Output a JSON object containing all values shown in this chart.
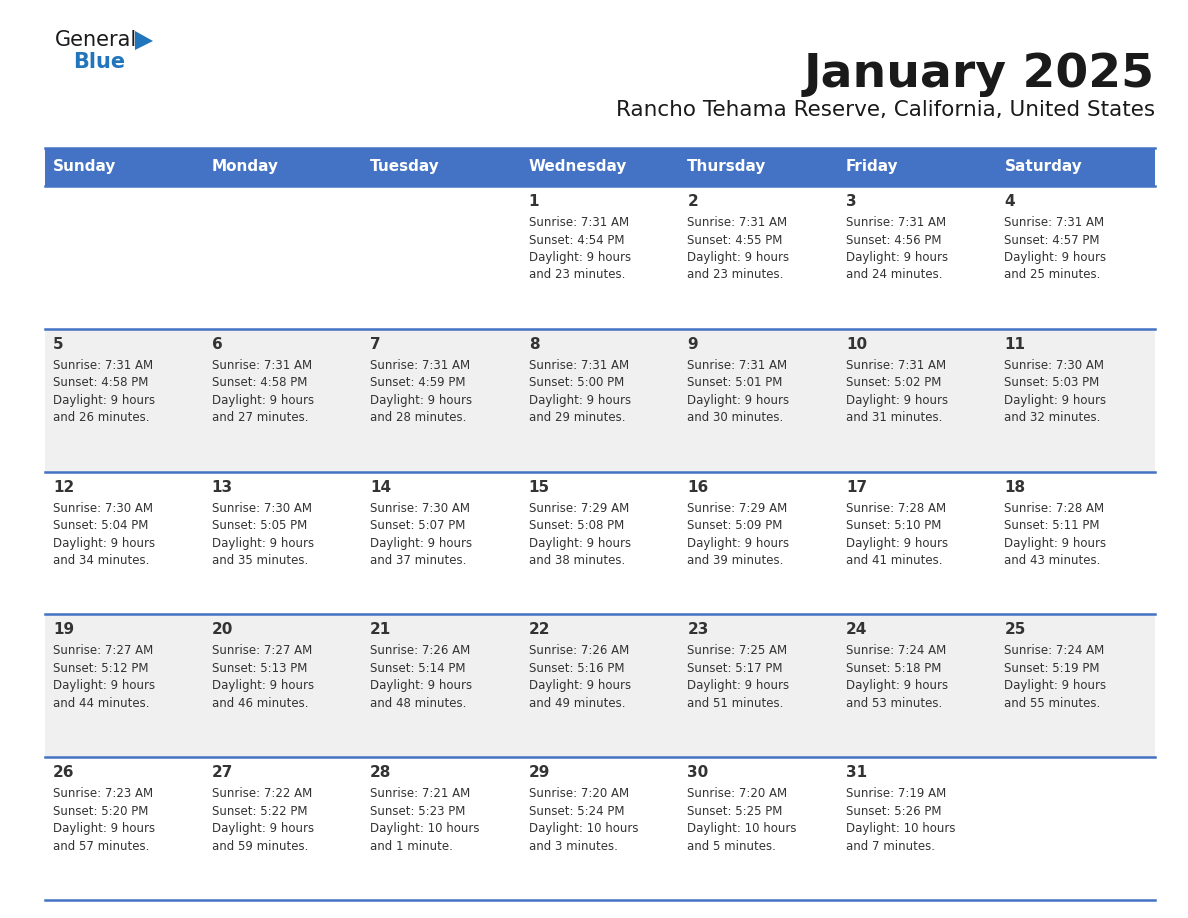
{
  "title": "January 2025",
  "subtitle": "Rancho Tehama Reserve, California, United States",
  "header_bg": "#4472C4",
  "header_text": "#FFFFFF",
  "row_bg_odd": "#FFFFFF",
  "row_bg_even": "#F0F0F0",
  "cell_text": "#333333",
  "border_color": "#4472C4",
  "days_of_week": [
    "Sunday",
    "Monday",
    "Tuesday",
    "Wednesday",
    "Thursday",
    "Friday",
    "Saturday"
  ],
  "weeks": [
    [
      {
        "day": "",
        "sunrise": "",
        "sunset": "",
        "daylight": ""
      },
      {
        "day": "",
        "sunrise": "",
        "sunset": "",
        "daylight": ""
      },
      {
        "day": "",
        "sunrise": "",
        "sunset": "",
        "daylight": ""
      },
      {
        "day": "1",
        "sunrise": "Sunrise: 7:31 AM",
        "sunset": "Sunset: 4:54 PM",
        "daylight": "Daylight: 9 hours\nand 23 minutes."
      },
      {
        "day": "2",
        "sunrise": "Sunrise: 7:31 AM",
        "sunset": "Sunset: 4:55 PM",
        "daylight": "Daylight: 9 hours\nand 23 minutes."
      },
      {
        "day": "3",
        "sunrise": "Sunrise: 7:31 AM",
        "sunset": "Sunset: 4:56 PM",
        "daylight": "Daylight: 9 hours\nand 24 minutes."
      },
      {
        "day": "4",
        "sunrise": "Sunrise: 7:31 AM",
        "sunset": "Sunset: 4:57 PM",
        "daylight": "Daylight: 9 hours\nand 25 minutes."
      }
    ],
    [
      {
        "day": "5",
        "sunrise": "Sunrise: 7:31 AM",
        "sunset": "Sunset: 4:58 PM",
        "daylight": "Daylight: 9 hours\nand 26 minutes."
      },
      {
        "day": "6",
        "sunrise": "Sunrise: 7:31 AM",
        "sunset": "Sunset: 4:58 PM",
        "daylight": "Daylight: 9 hours\nand 27 minutes."
      },
      {
        "day": "7",
        "sunrise": "Sunrise: 7:31 AM",
        "sunset": "Sunset: 4:59 PM",
        "daylight": "Daylight: 9 hours\nand 28 minutes."
      },
      {
        "day": "8",
        "sunrise": "Sunrise: 7:31 AM",
        "sunset": "Sunset: 5:00 PM",
        "daylight": "Daylight: 9 hours\nand 29 minutes."
      },
      {
        "day": "9",
        "sunrise": "Sunrise: 7:31 AM",
        "sunset": "Sunset: 5:01 PM",
        "daylight": "Daylight: 9 hours\nand 30 minutes."
      },
      {
        "day": "10",
        "sunrise": "Sunrise: 7:31 AM",
        "sunset": "Sunset: 5:02 PM",
        "daylight": "Daylight: 9 hours\nand 31 minutes."
      },
      {
        "day": "11",
        "sunrise": "Sunrise: 7:30 AM",
        "sunset": "Sunset: 5:03 PM",
        "daylight": "Daylight: 9 hours\nand 32 minutes."
      }
    ],
    [
      {
        "day": "12",
        "sunrise": "Sunrise: 7:30 AM",
        "sunset": "Sunset: 5:04 PM",
        "daylight": "Daylight: 9 hours\nand 34 minutes."
      },
      {
        "day": "13",
        "sunrise": "Sunrise: 7:30 AM",
        "sunset": "Sunset: 5:05 PM",
        "daylight": "Daylight: 9 hours\nand 35 minutes."
      },
      {
        "day": "14",
        "sunrise": "Sunrise: 7:30 AM",
        "sunset": "Sunset: 5:07 PM",
        "daylight": "Daylight: 9 hours\nand 37 minutes."
      },
      {
        "day": "15",
        "sunrise": "Sunrise: 7:29 AM",
        "sunset": "Sunset: 5:08 PM",
        "daylight": "Daylight: 9 hours\nand 38 minutes."
      },
      {
        "day": "16",
        "sunrise": "Sunrise: 7:29 AM",
        "sunset": "Sunset: 5:09 PM",
        "daylight": "Daylight: 9 hours\nand 39 minutes."
      },
      {
        "day": "17",
        "sunrise": "Sunrise: 7:28 AM",
        "sunset": "Sunset: 5:10 PM",
        "daylight": "Daylight: 9 hours\nand 41 minutes."
      },
      {
        "day": "18",
        "sunrise": "Sunrise: 7:28 AM",
        "sunset": "Sunset: 5:11 PM",
        "daylight": "Daylight: 9 hours\nand 43 minutes."
      }
    ],
    [
      {
        "day": "19",
        "sunrise": "Sunrise: 7:27 AM",
        "sunset": "Sunset: 5:12 PM",
        "daylight": "Daylight: 9 hours\nand 44 minutes."
      },
      {
        "day": "20",
        "sunrise": "Sunrise: 7:27 AM",
        "sunset": "Sunset: 5:13 PM",
        "daylight": "Daylight: 9 hours\nand 46 minutes."
      },
      {
        "day": "21",
        "sunrise": "Sunrise: 7:26 AM",
        "sunset": "Sunset: 5:14 PM",
        "daylight": "Daylight: 9 hours\nand 48 minutes."
      },
      {
        "day": "22",
        "sunrise": "Sunrise: 7:26 AM",
        "sunset": "Sunset: 5:16 PM",
        "daylight": "Daylight: 9 hours\nand 49 minutes."
      },
      {
        "day": "23",
        "sunrise": "Sunrise: 7:25 AM",
        "sunset": "Sunset: 5:17 PM",
        "daylight": "Daylight: 9 hours\nand 51 minutes."
      },
      {
        "day": "24",
        "sunrise": "Sunrise: 7:24 AM",
        "sunset": "Sunset: 5:18 PM",
        "daylight": "Daylight: 9 hours\nand 53 minutes."
      },
      {
        "day": "25",
        "sunrise": "Sunrise: 7:24 AM",
        "sunset": "Sunset: 5:19 PM",
        "daylight": "Daylight: 9 hours\nand 55 minutes."
      }
    ],
    [
      {
        "day": "26",
        "sunrise": "Sunrise: 7:23 AM",
        "sunset": "Sunset: 5:20 PM",
        "daylight": "Daylight: 9 hours\nand 57 minutes."
      },
      {
        "day": "27",
        "sunrise": "Sunrise: 7:22 AM",
        "sunset": "Sunset: 5:22 PM",
        "daylight": "Daylight: 9 hours\nand 59 minutes."
      },
      {
        "day": "28",
        "sunrise": "Sunrise: 7:21 AM",
        "sunset": "Sunset: 5:23 PM",
        "daylight": "Daylight: 10 hours\nand 1 minute."
      },
      {
        "day": "29",
        "sunrise": "Sunrise: 7:20 AM",
        "sunset": "Sunset: 5:24 PM",
        "daylight": "Daylight: 10 hours\nand 3 minutes."
      },
      {
        "day": "30",
        "sunrise": "Sunrise: 7:20 AM",
        "sunset": "Sunset: 5:25 PM",
        "daylight": "Daylight: 10 hours\nand 5 minutes."
      },
      {
        "day": "31",
        "sunrise": "Sunrise: 7:19 AM",
        "sunset": "Sunset: 5:26 PM",
        "daylight": "Daylight: 10 hours\nand 7 minutes."
      },
      {
        "day": "",
        "sunrise": "",
        "sunset": "",
        "daylight": ""
      }
    ]
  ]
}
